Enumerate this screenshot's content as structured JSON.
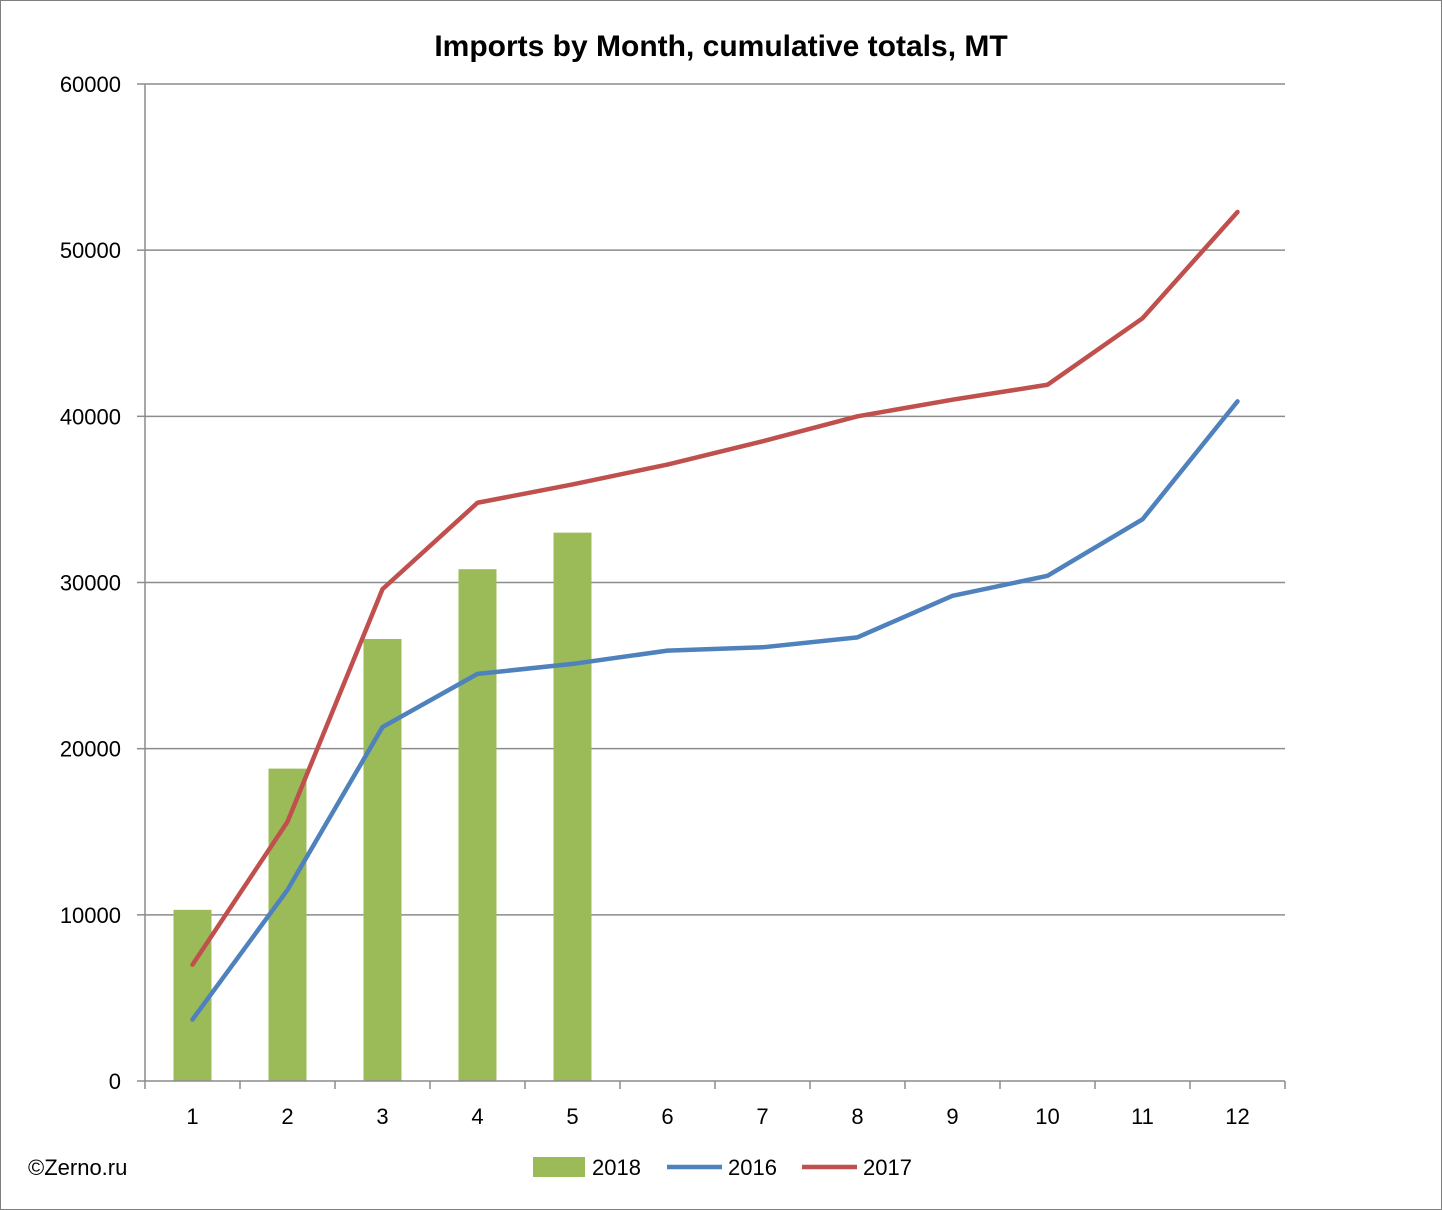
{
  "chart_data": {
    "type": "bar",
    "title": "Imports by Month, cumulative totals, MT",
    "xlabel": "",
    "ylabel": "",
    "categories": [
      "1",
      "2",
      "3",
      "4",
      "5",
      "6",
      "7",
      "8",
      "9",
      "10",
      "11",
      "12"
    ],
    "y_ticks": [
      "0",
      "10000",
      "20000",
      "30000",
      "40000",
      "50000",
      "60000"
    ],
    "ylim": [
      0,
      60000
    ],
    "grid": "horizontal",
    "legend_position": "bottom",
    "series": [
      {
        "name": "2018",
        "type": "bar",
        "color": "#9bbb59",
        "values": [
          10300,
          18800,
          26600,
          30800,
          33000,
          null,
          null,
          null,
          null,
          null,
          null,
          null
        ]
      },
      {
        "name": "2016",
        "type": "line",
        "color": "#4f81bd",
        "values": [
          3700,
          11500,
          21300,
          24500,
          25100,
          25900,
          26100,
          26700,
          29200,
          30400,
          33800,
          40900
        ]
      },
      {
        "name": "2017",
        "type": "line",
        "color": "#c0504d",
        "values": [
          7000,
          15600,
          29600,
          34800,
          35900,
          37100,
          38500,
          40000,
          41000,
          41900,
          45900,
          52300
        ]
      }
    ]
  },
  "credit": "©Zerno.ru"
}
